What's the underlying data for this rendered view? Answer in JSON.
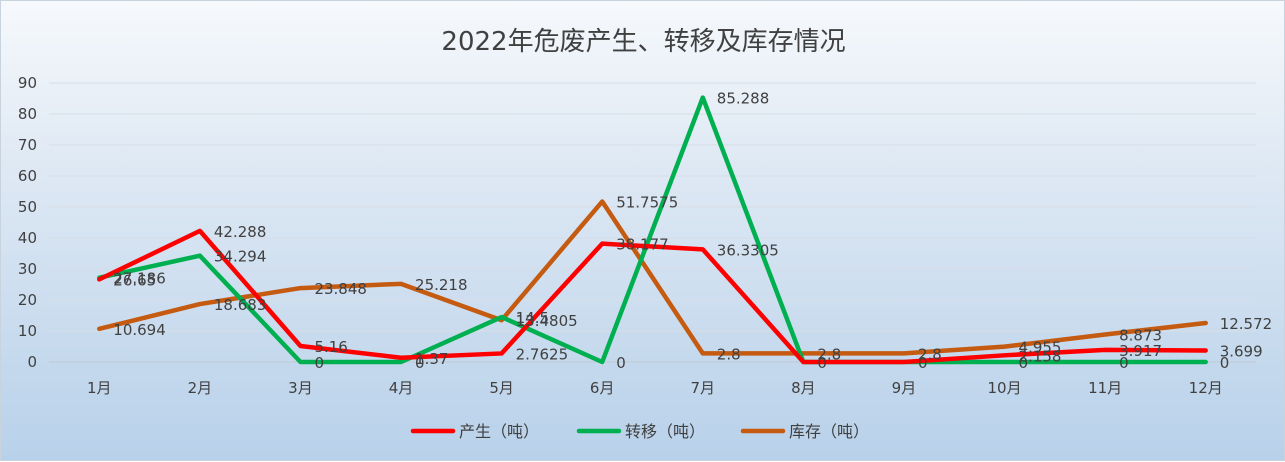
{
  "chart_data": {
    "type": "line",
    "title": "2022年危废产生、转移及库存情况",
    "xlabel": "",
    "ylabel": "",
    "ylim": [
      0,
      90
    ],
    "yticks": [
      0,
      10,
      20,
      30,
      40,
      50,
      60,
      70,
      80,
      90
    ],
    "grid": true,
    "legend_position": "bottom",
    "categories": [
      "1月",
      "2月",
      "3月",
      "4月",
      "5月",
      "6月",
      "7月",
      "8月",
      "9月",
      "10月",
      "11月",
      "12月"
    ],
    "series": [
      {
        "name": "产生（吨）",
        "color": "#ff0000",
        "values": [
          26.65,
          42.288,
          5.16,
          1.37,
          2.7625,
          38.177,
          36.3305,
          0,
          0,
          2.158,
          3.917,
          3.699
        ],
        "labels": [
          "26.65",
          "42.288",
          "5.16",
          "1.37",
          "2.7625",
          "38.177",
          "36.3305",
          "",
          "",
          "2.158",
          "3.917",
          "3.699"
        ]
      },
      {
        "name": "转移（吨）",
        "color": "#00b050",
        "values": [
          27.186,
          34.294,
          0,
          0,
          14.5,
          0,
          85.288,
          0,
          0,
          0,
          0,
          0
        ],
        "labels": [
          "27.186",
          "34.294",
          "0",
          "0",
          "14.5",
          "0",
          "85.288",
          "0",
          "0",
          "0",
          "0",
          "0"
        ]
      },
      {
        "name": "库存（吨）",
        "color": "#c55a11",
        "values": [
          10.694,
          18.683,
          23.848,
          25.218,
          13.4805,
          51.7575,
          2.8,
          2.8,
          2.8,
          4.955,
          8.873,
          12.572
        ],
        "labels": [
          "10.694",
          "18.683",
          "23.848",
          "25.218",
          "13.4805",
          "51.7575",
          "2.8",
          "2.8",
          "2.8",
          "4.955",
          "8.873",
          "12.572"
        ]
      }
    ]
  }
}
